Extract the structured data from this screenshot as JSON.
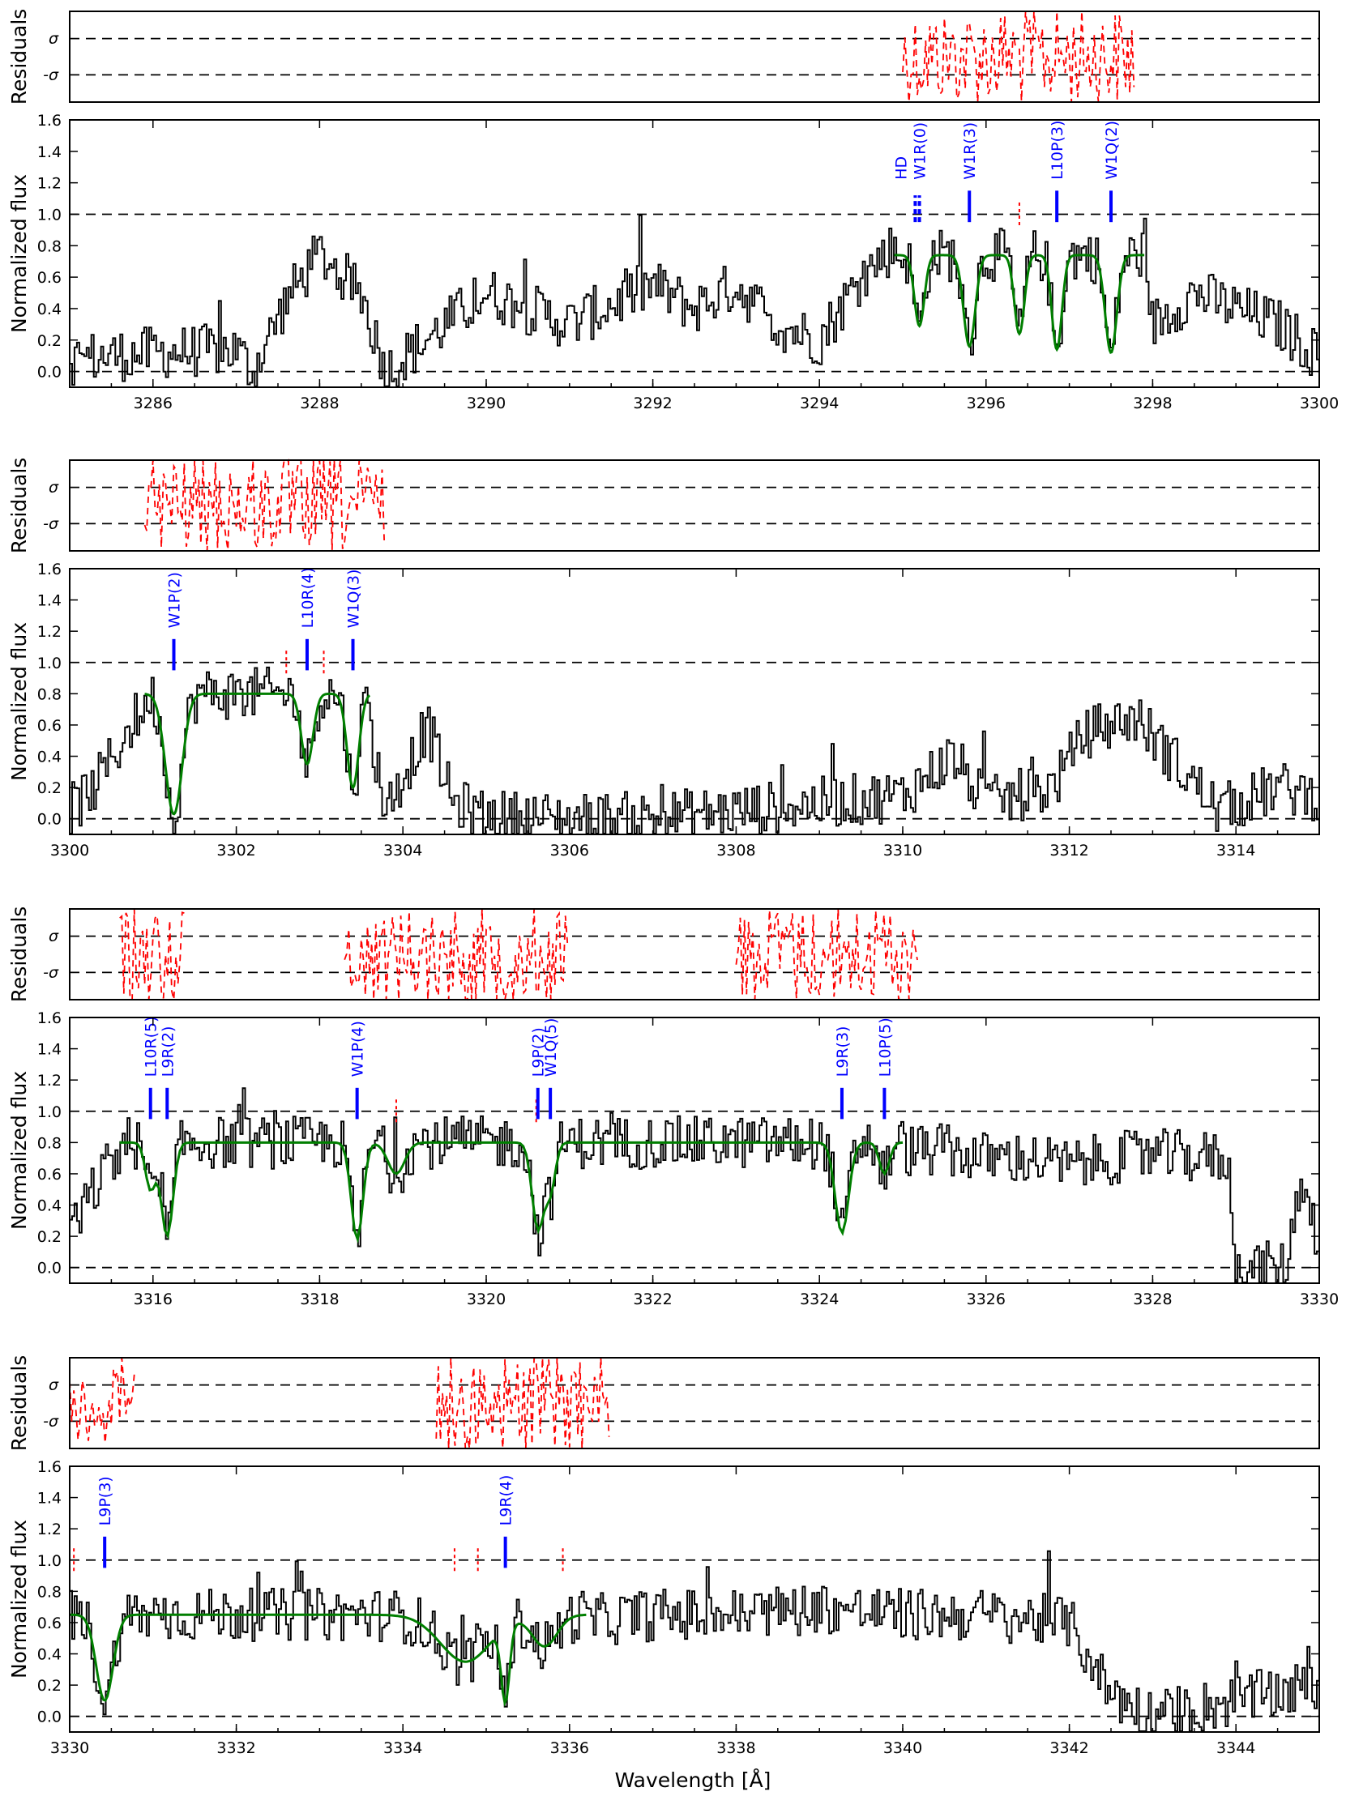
{
  "figure": {
    "xlabel": "Wavelength [Å]",
    "resid_ylabel": "Residuals",
    "flux_ylabel": "Normalized flux",
    "resid_ticks": [
      "σ",
      "-σ"
    ],
    "colors": {
      "data": "#000000",
      "fit": "#007f00",
      "residuals": "#ff0000",
      "transitions": "#0000ff"
    }
  },
  "chart_data": [
    {
      "type": "line",
      "xlim": [
        3285,
        3300
      ],
      "ylim": [
        -0.1,
        1.6
      ],
      "xticks": [
        3286,
        3288,
        3290,
        3292,
        3294,
        3296,
        3298,
        3300
      ],
      "yticks": [
        0.0,
        0.2,
        0.4,
        0.6,
        0.8,
        1.0,
        1.2,
        1.4,
        1.6
      ],
      "reference_lines": [
        0.0,
        1.0
      ],
      "fit_range": [
        3294.9,
        3297.9
      ],
      "residual_ranges": [
        [
          3295.0,
          3297.8
        ]
      ],
      "transitions": [
        {
          "label": "HD",
          "x": 3295.15,
          "minor": true
        },
        {
          "label": "W1R(0)",
          "x": 3295.2,
          "minor": true
        },
        {
          "label": "W1R(3)",
          "x": 3295.8
        },
        {
          "label": "L10P(3)",
          "x": 3296.85
        },
        {
          "label": "W1Q(2)",
          "x": 3297.5
        }
      ],
      "extra_marks": [
        3296.4
      ],
      "continuum": [
        [
          3285.0,
          0.08
        ],
        [
          3286.0,
          0.12
        ],
        [
          3287.0,
          0.14
        ],
        [
          3287.2,
          0.0
        ],
        [
          3287.6,
          0.45
        ],
        [
          3288.0,
          0.75
        ],
        [
          3288.5,
          0.5
        ],
        [
          3288.8,
          0.0
        ],
        [
          3290.0,
          0.5
        ],
        [
          3291.0,
          0.3
        ],
        [
          3292.0,
          0.55
        ],
        [
          3292.5,
          0.4
        ],
        [
          3293.0,
          0.55
        ],
        [
          3293.5,
          0.3
        ],
        [
          3294.0,
          0.2
        ],
        [
          3294.5,
          0.6
        ],
        [
          3295.0,
          0.85
        ],
        [
          3296.0,
          0.8
        ],
        [
          3297.0,
          0.7
        ],
        [
          3297.5,
          0.55
        ],
        [
          3298.0,
          0.3
        ],
        [
          3298.5,
          0.5
        ],
        [
          3299.0,
          0.4
        ],
        [
          3299.5,
          0.3
        ],
        [
          3300.0,
          0.1
        ]
      ],
      "fit_components": [
        {
          "center": 3295.2,
          "depth": 0.45,
          "width": 0.06
        },
        {
          "center": 3295.8,
          "depth": 0.58,
          "width": 0.07
        },
        {
          "center": 3296.4,
          "depth": 0.5,
          "width": 0.06
        },
        {
          "center": 3296.85,
          "depth": 0.6,
          "width": 0.06
        },
        {
          "center": 3297.5,
          "depth": 0.62,
          "width": 0.07
        }
      ],
      "fit_base": 0.74
    },
    {
      "type": "line",
      "xlim": [
        3300,
        3315
      ],
      "ylim": [
        -0.1,
        1.6
      ],
      "xticks": [
        3300,
        3302,
        3304,
        3306,
        3308,
        3310,
        3312,
        3314
      ],
      "yticks": [
        0.0,
        0.2,
        0.4,
        0.6,
        0.8,
        1.0,
        1.2,
        1.4,
        1.6
      ],
      "reference_lines": [
        0.0,
        1.0
      ],
      "fit_range": [
        3300.9,
        3303.6
      ],
      "residual_ranges": [
        [
          3300.9,
          3303.8
        ]
      ],
      "transitions": [
        {
          "label": "W1P(2)",
          "x": 3301.25
        },
        {
          "label": "L10R(4)",
          "x": 3302.85
        },
        {
          "label": "W1Q(3)",
          "x": 3303.4
        }
      ],
      "extra_marks": [
        3302.6,
        3303.05
      ],
      "continuum": [
        [
          3300.0,
          0.05
        ],
        [
          3300.3,
          0.2
        ],
        [
          3300.8,
          0.65
        ],
        [
          3301.5,
          0.8
        ],
        [
          3302.0,
          0.75
        ],
        [
          3302.5,
          0.5
        ],
        [
          3303.0,
          0.4
        ],
        [
          3303.6,
          0.6
        ],
        [
          3303.8,
          0.05
        ],
        [
          3304.3,
          0.6
        ],
        [
          3304.6,
          0.1
        ],
        [
          3305.0,
          0.02
        ],
        [
          3306.0,
          0.0
        ],
        [
          3307.0,
          0.01
        ],
        [
          3308.0,
          0.05
        ],
        [
          3309.0,
          0.1
        ],
        [
          3310.0,
          0.15
        ],
        [
          3310.6,
          0.4
        ],
        [
          3311.0,
          0.1
        ],
        [
          3311.8,
          0.2
        ],
        [
          3312.2,
          0.55
        ],
        [
          3312.8,
          0.65
        ],
        [
          3313.3,
          0.35
        ],
        [
          3313.8,
          0.05
        ],
        [
          3314.5,
          0.2
        ],
        [
          3315.0,
          0.15
        ]
      ],
      "fit_components": [
        {
          "center": 3301.25,
          "depth": 0.77,
          "width": 0.1
        },
        {
          "center": 3302.85,
          "depth": 0.45,
          "width": 0.07
        },
        {
          "center": 3303.4,
          "depth": 0.6,
          "width": 0.07
        }
      ],
      "fit_base": 0.8
    },
    {
      "type": "line",
      "xlim": [
        3315,
        3330
      ],
      "ylim": [
        -0.1,
        1.6
      ],
      "xticks": [
        3316,
        3318,
        3320,
        3322,
        3324,
        3326,
        3328,
        3330
      ],
      "yticks": [
        0.0,
        0.2,
        0.4,
        0.6,
        0.8,
        1.0,
        1.2,
        1.4,
        1.6
      ],
      "reference_lines": [
        0.0,
        1.0
      ],
      "fit_range": [
        3315.6,
        3325.0
      ],
      "residual_ranges": [
        [
          3315.6,
          3316.4
        ],
        [
          3318.3,
          3321.0
        ],
        [
          3323.0,
          3325.2
        ]
      ],
      "transitions": [
        {
          "label": "L10R(5)",
          "x": 3315.97
        },
        {
          "label": "L9R(2)",
          "x": 3316.17
        },
        {
          "label": "W1P(4)",
          "x": 3318.45
        },
        {
          "label": "L9P(2)",
          "x": 3320.62
        },
        {
          "label": "W1Q(5)",
          "x": 3320.77
        },
        {
          "label": "L9R(3)",
          "x": 3324.27
        },
        {
          "label": "L10P(5)",
          "x": 3324.78
        }
      ],
      "extra_marks": [
        3318.92,
        3320.6
      ],
      "continuum": [
        [
          3315.0,
          0.2
        ],
        [
          3315.5,
          0.7
        ],
        [
          3316.0,
          0.6
        ],
        [
          3316.5,
          0.7
        ],
        [
          3316.8,
          0.3
        ],
        [
          3317.2,
          0.1
        ],
        [
          3317.5,
          0.05
        ],
        [
          3317.8,
          0.3
        ],
        [
          3318.2,
          0.8
        ],
        [
          3318.6,
          0.85
        ],
        [
          3319.0,
          0.7
        ],
        [
          3319.5,
          0.85
        ],
        [
          3320.0,
          0.85
        ],
        [
          3320.4,
          0.7
        ],
        [
          3321.0,
          0.7
        ],
        [
          3321.5,
          0.65
        ],
        [
          3322.0,
          0.65
        ],
        [
          3322.5,
          0.7
        ],
        [
          3323.0,
          0.75
        ],
        [
          3323.5,
          0.8
        ],
        [
          3324.0,
          0.75
        ],
        [
          3324.8,
          0.75
        ],
        [
          3325.5,
          0.75
        ],
        [
          3326.0,
          0.7
        ],
        [
          3326.5,
          0.7
        ],
        [
          3327.0,
          0.65
        ],
        [
          3327.5,
          0.7
        ],
        [
          3328.0,
          0.72
        ],
        [
          3328.9,
          0.7
        ],
        [
          3329.0,
          0.0
        ],
        [
          3329.6,
          0.0
        ],
        [
          3329.8,
          0.6
        ],
        [
          3330.0,
          0.15
        ]
      ],
      "fit_components": [
        {
          "center": 3315.97,
          "depth": 0.3,
          "width": 0.06
        },
        {
          "center": 3316.17,
          "depth": 0.6,
          "width": 0.07
        },
        {
          "center": 3318.45,
          "depth": 0.62,
          "width": 0.07
        },
        {
          "center": 3318.92,
          "depth": 0.2,
          "width": 0.1
        },
        {
          "center": 3320.62,
          "depth": 0.55,
          "width": 0.07
        },
        {
          "center": 3320.77,
          "depth": 0.3,
          "width": 0.06
        },
        {
          "center": 3324.27,
          "depth": 0.58,
          "width": 0.08
        },
        {
          "center": 3324.78,
          "depth": 0.2,
          "width": 0.06
        }
      ],
      "fit_base": 0.8
    },
    {
      "type": "line",
      "xlim": [
        3330,
        3345
      ],
      "ylim": [
        -0.1,
        1.6
      ],
      "xticks": [
        3330,
        3332,
        3334,
        3336,
        3338,
        3340,
        3342,
        3344
      ],
      "yticks": [
        0.0,
        0.2,
        0.4,
        0.6,
        0.8,
        1.0,
        1.2,
        1.4,
        1.6
      ],
      "reference_lines": [
        0.0,
        1.0
      ],
      "fit_range": [
        3330.0,
        3336.2
      ],
      "residual_ranges": [
        [
          3330.0,
          3330.8
        ],
        [
          3334.4,
          3336.5
        ]
      ],
      "transitions": [
        {
          "label": "L9P(3)",
          "x": 3330.42
        },
        {
          "label": "L9R(4)",
          "x": 3335.23
        }
      ],
      "extra_marks": [
        3330.05,
        3334.62,
        3334.9,
        3335.92
      ],
      "continuum": [
        [
          3330.0,
          0.05
        ],
        [
          3330.4,
          0.1
        ],
        [
          3330.7,
          0.6
        ],
        [
          3331.0,
          0.6
        ],
        [
          3331.5,
          0.45
        ],
        [
          3332.0,
          0.5
        ],
        [
          3332.5,
          0.4
        ],
        [
          3332.9,
          0.05
        ],
        [
          3333.5,
          0.05
        ],
        [
          3334.0,
          0.35
        ],
        [
          3334.5,
          0.3
        ],
        [
          3335.0,
          0.45
        ],
        [
          3335.5,
          0.65
        ],
        [
          3336.0,
          0.6
        ],
        [
          3337.0,
          0.65
        ],
        [
          3338.0,
          0.65
        ],
        [
          3339.0,
          0.7
        ],
        [
          3340.0,
          0.65
        ],
        [
          3341.0,
          0.65
        ],
        [
          3342.0,
          0.6
        ],
        [
          3342.5,
          0.15
        ],
        [
          3343.0,
          0.0
        ],
        [
          3343.5,
          0.05
        ],
        [
          3344.0,
          0.1
        ],
        [
          3345.0,
          0.2
        ]
      ],
      "fit_components": [
        {
          "center": 3330.42,
          "depth": 0.55,
          "width": 0.1
        },
        {
          "center": 3334.75,
          "depth": 0.3,
          "width": 0.3
        },
        {
          "center": 3335.23,
          "depth": 0.48,
          "width": 0.05
        },
        {
          "center": 3335.7,
          "depth": 0.2,
          "width": 0.15
        }
      ],
      "fit_base": 0.65
    }
  ]
}
